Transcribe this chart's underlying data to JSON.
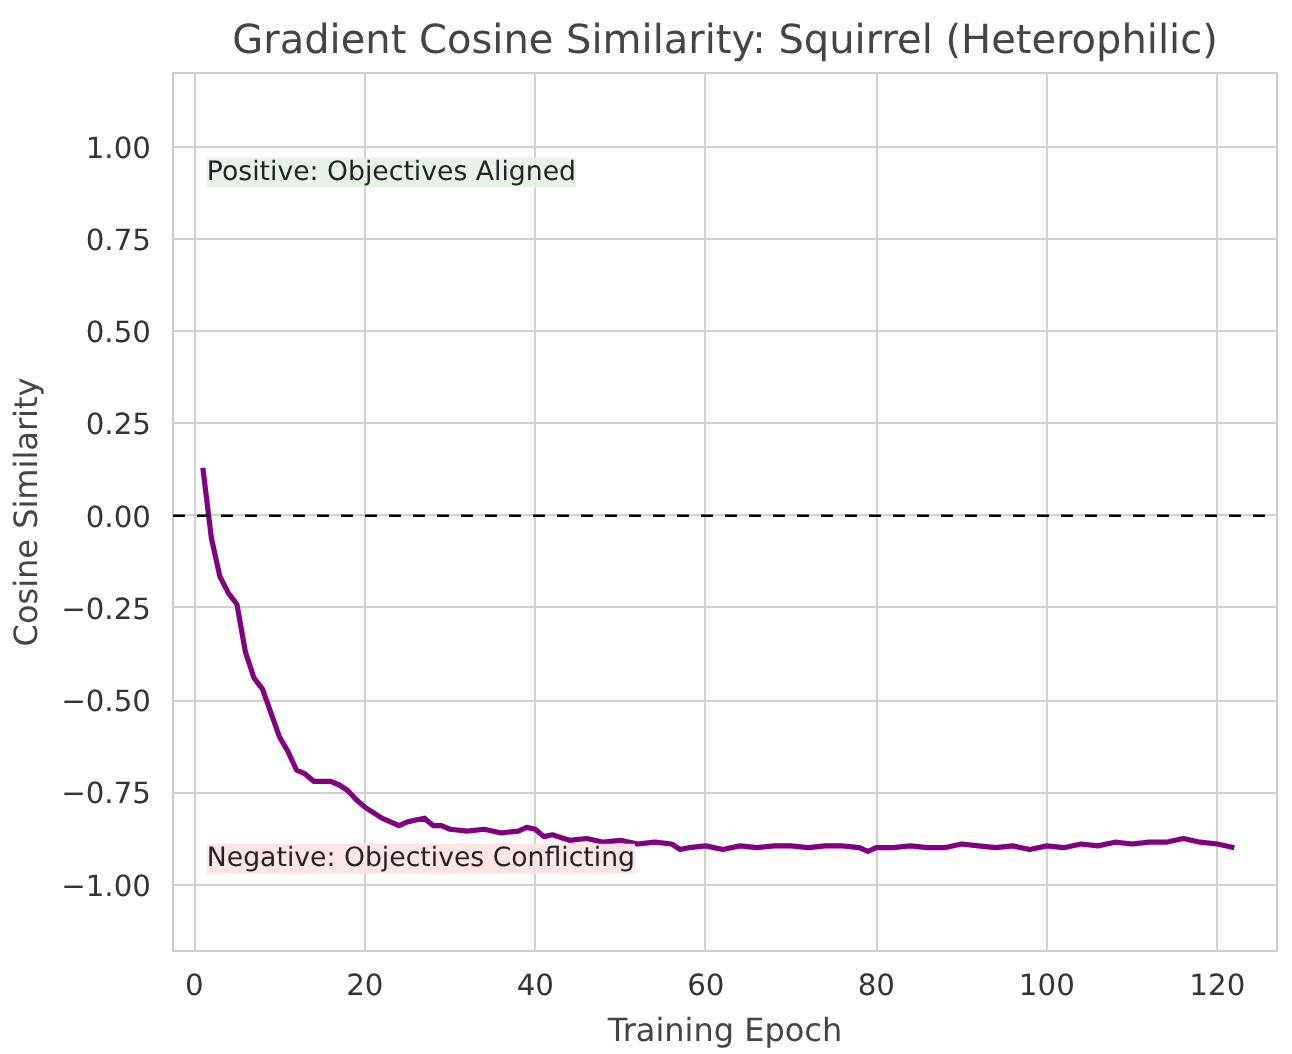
{
  "chart_data": {
    "type": "line",
    "title": "Gradient Cosine Similarity: Squirrel (Heterophilic)",
    "xlabel": "Training Epoch",
    "ylabel": "Cosine Similarity",
    "xlim": [
      -2.5,
      127
    ],
    "xticks": [
      0,
      20,
      40,
      60,
      80,
      100,
      120
    ],
    "ylim": [
      -1.18,
      1.2
    ],
    "yticks": [
      {
        "value": -1,
        "label": "−1.00"
      },
      {
        "value": -0.75,
        "label": "−0.75"
      },
      {
        "value": -0.5,
        "label": "−0.50"
      },
      {
        "value": -0.25,
        "label": "−0.25"
      },
      {
        "value": 0,
        "label": "0.00"
      },
      {
        "value": 0.25,
        "label": "0.25"
      },
      {
        "value": 0.5,
        "label": "0.50"
      },
      {
        "value": 0.75,
        "label": "0.75"
      },
      {
        "value": 1,
        "label": "1.00"
      }
    ],
    "grid": true,
    "line_style": "solid",
    "ref_lines": [
      {
        "axis": "y",
        "value": 0,
        "color": "#000000",
        "line_style": "dashed"
      }
    ],
    "annotations": [
      "Positive: Objectives Aligned",
      "Negative: Objectives Conflicting"
    ],
    "series": [
      {
        "color": "#800080",
        "x": [
          1,
          2,
          3,
          4,
          5,
          6,
          7,
          8,
          9,
          10,
          11,
          12,
          13,
          14,
          16,
          17,
          18,
          19,
          20,
          21,
          22,
          23,
          24,
          25,
          26,
          27,
          28,
          29,
          30,
          32,
          34,
          36,
          38,
          39,
          40,
          41,
          42,
          44,
          46,
          48,
          50,
          52,
          54,
          56,
          57,
          58,
          60,
          62,
          64,
          66,
          68,
          70,
          72,
          74,
          76,
          78,
          79,
          80,
          82,
          84,
          86,
          88,
          90,
          92,
          94,
          96,
          98,
          100,
          102,
          104,
          106,
          108,
          110,
          112,
          114,
          116,
          118,
          120,
          122
        ],
        "values": [
          0.13,
          -0.06,
          -0.165,
          -0.21,
          -0.24,
          -0.37,
          -0.44,
          -0.47,
          -0.535,
          -0.6,
          -0.64,
          -0.69,
          -0.7,
          -0.72,
          -0.72,
          -0.73,
          -0.745,
          -0.77,
          -0.79,
          -0.805,
          -0.82,
          -0.83,
          -0.84,
          -0.83,
          -0.825,
          -0.82,
          -0.84,
          -0.84,
          -0.85,
          -0.855,
          -0.85,
          -0.86,
          -0.855,
          -0.845,
          -0.85,
          -0.87,
          -0.865,
          -0.88,
          -0.875,
          -0.885,
          -0.88,
          -0.89,
          -0.885,
          -0.89,
          -0.905,
          -0.9,
          -0.895,
          -0.905,
          -0.895,
          -0.9,
          -0.895,
          -0.895,
          -0.9,
          -0.895,
          -0.895,
          -0.9,
          -0.91,
          -0.9,
          -0.9,
          -0.895,
          -0.9,
          -0.9,
          -0.89,
          -0.895,
          -0.9,
          -0.895,
          -0.905,
          -0.895,
          -0.9,
          -0.89,
          -0.895,
          -0.885,
          -0.89,
          -0.885,
          -0.885,
          -0.875,
          -0.885,
          -0.89,
          -0.9
        ]
      }
    ]
  }
}
